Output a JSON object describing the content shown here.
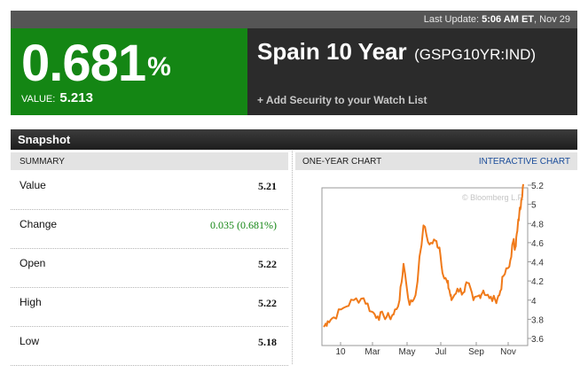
{
  "last_update": {
    "label": "Last Update:",
    "time": "5:06 AM ET",
    "date": ", Nov 29"
  },
  "quote": {
    "percent": "0.681",
    "percent_symbol": "%",
    "value_label": "VALUE:",
    "value": "5.213"
  },
  "security": {
    "name": "Spain 10 Year",
    "ticker": "(GSPG10YR:IND)",
    "add_watchlist": "+ Add Security to your Watch List"
  },
  "snapshot": {
    "title": "Snapshot",
    "summary_header": "SUMMARY",
    "rows": [
      {
        "label": "Value",
        "value": "5.21"
      },
      {
        "label": "Change",
        "value": "0.035 (0.681%)"
      },
      {
        "label": "Open",
        "value": "5.22"
      },
      {
        "label": "High",
        "value": "5.22"
      },
      {
        "label": "Low",
        "value": "5.18"
      }
    ]
  },
  "chart_header": {
    "label": "ONE-YEAR CHART",
    "link": "INTERACTIVE CHART"
  },
  "colors": {
    "positive_green": "#148614",
    "line_orange": "#f07a1a",
    "header_dark": "#2b2b2b"
  },
  "chart_data": {
    "type": "line",
    "watermark": "© Bloomberg L.P.",
    "x_ticks": [
      "10",
      "Mar",
      "May",
      "Jul",
      "Sep",
      "Nov"
    ],
    "y_ticks": [
      "3.6",
      "3.8",
      "4",
      "4.2",
      "4.4",
      "4.6",
      "4.8",
      "5",
      "5.2"
    ],
    "ylim": [
      3.6,
      5.25
    ],
    "grid": false,
    "x_positions": [
      0,
      0.02,
      0.05,
      0.1,
      0.15,
      0.2,
      0.24,
      0.27,
      0.3,
      0.33,
      0.35,
      0.38,
      0.4,
      0.43,
      0.46,
      0.5,
      0.53,
      0.56,
      0.58,
      0.6,
      0.62,
      0.63,
      0.64,
      0.67,
      0.7,
      0.72,
      0.75,
      0.78,
      0.8,
      0.83,
      0.86,
      0.88,
      0.9,
      0.93,
      0.95,
      0.96,
      0.97,
      0.98,
      0.99,
      1.0
    ],
    "series": [
      {
        "values": [
          3.72,
          3.78,
          3.82,
          3.92,
          4.0,
          4.02,
          3.88,
          3.83,
          3.84,
          3.82,
          3.85,
          4.0,
          4.38,
          3.95,
          4.05,
          4.78,
          4.58,
          4.62,
          4.55,
          4.25,
          4.18,
          4.1,
          4.0,
          4.12,
          4.08,
          4.18,
          4.0,
          4.05,
          4.1,
          4.02,
          4.0,
          4.05,
          4.25,
          4.35,
          4.62,
          4.55,
          4.72,
          4.9,
          5.05,
          5.21
        ]
      }
    ]
  }
}
